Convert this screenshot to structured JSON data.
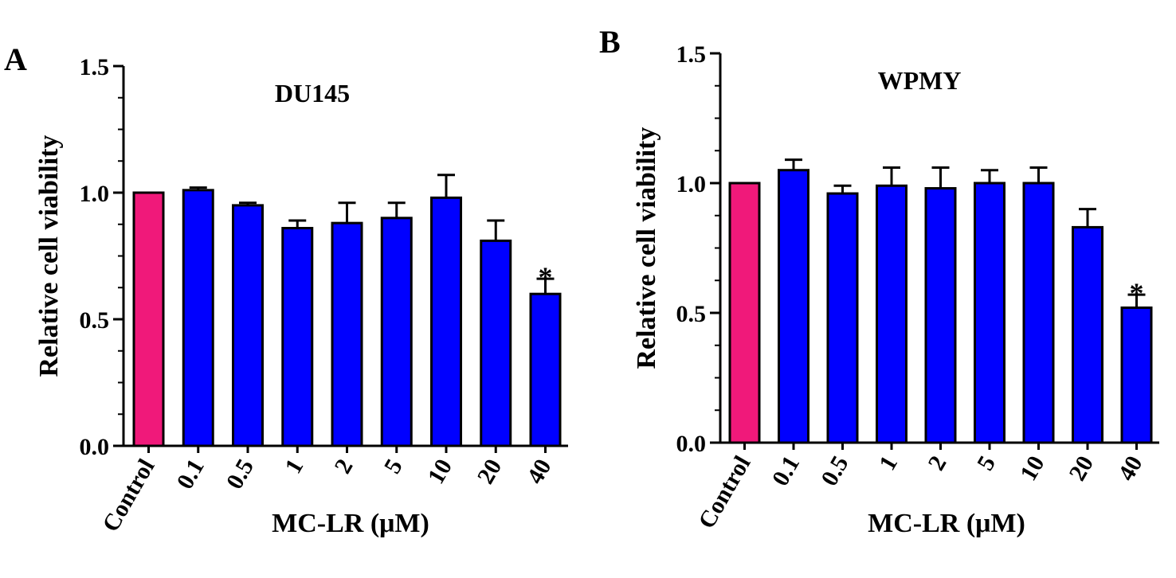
{
  "colors": {
    "control_bar": "#f0197a",
    "treatment_bar": "#0000ff",
    "axis": "#000000",
    "background": "#ffffff"
  },
  "chart_data": [
    {
      "panel_letter": "A",
      "type": "bar",
      "title": "DU145",
      "xlabel": "MC-LR (μM)",
      "ylabel": "Relative cell viability",
      "ylim": [
        0,
        1.5
      ],
      "yticks": [
        0.0,
        0.5,
        1.0,
        1.5
      ],
      "ytick_labels": [
        "0.0",
        "0.5",
        "1.0",
        "1.5"
      ],
      "grid": false,
      "categories": [
        "Control",
        "0.1",
        "0.5",
        "1",
        "2",
        "5",
        "10",
        "20",
        "40"
      ],
      "values": [
        1.0,
        1.01,
        0.95,
        0.86,
        0.88,
        0.9,
        0.98,
        0.81,
        0.6
      ],
      "errors": [
        0.0,
        0.01,
        0.01,
        0.03,
        0.08,
        0.06,
        0.09,
        0.08,
        0.06
      ],
      "significance": [
        "",
        "",
        "",
        "",
        "",
        "",
        "",
        "",
        "*"
      ]
    },
    {
      "panel_letter": "B",
      "type": "bar",
      "title": "WPMY",
      "xlabel": "MC-LR (μM)",
      "ylabel": "Relative cell viability",
      "ylim": [
        0,
        1.5
      ],
      "yticks": [
        0.0,
        0.5,
        1.0,
        1.5
      ],
      "ytick_labels": [
        "0.0",
        "0.5",
        "1.0",
        "1.5"
      ],
      "grid": false,
      "categories": [
        "Control",
        "0.1",
        "0.5",
        "1",
        "2",
        "5",
        "10",
        "20",
        "40"
      ],
      "values": [
        1.0,
        1.05,
        0.96,
        0.99,
        0.98,
        1.0,
        1.0,
        0.83,
        0.52
      ],
      "errors": [
        0.0,
        0.04,
        0.03,
        0.07,
        0.08,
        0.05,
        0.06,
        0.07,
        0.05
      ],
      "significance": [
        "",
        "",
        "",
        "",
        "",
        "",
        "",
        "",
        "*"
      ]
    }
  ]
}
